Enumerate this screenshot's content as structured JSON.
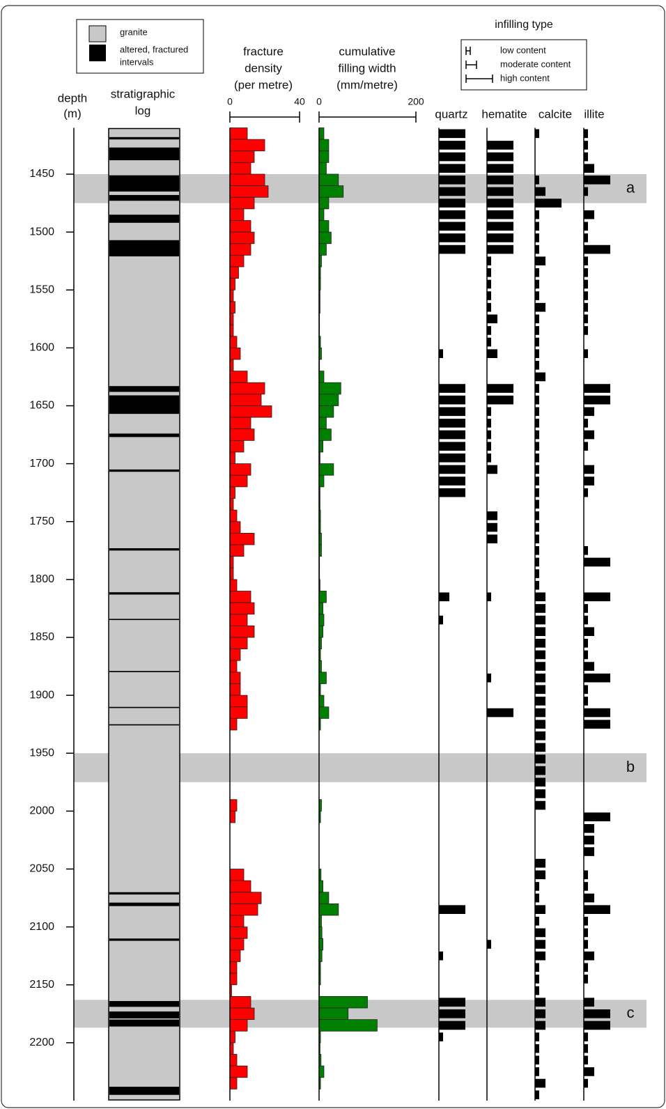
{
  "chart_data": {
    "type": "well-log",
    "depth_label": [
      "depth",
      "(m)"
    ],
    "strat_label": [
      "stratigraphic",
      "log"
    ],
    "density_label": [
      "fracture",
      "density",
      "(per metre)"
    ],
    "width_label": [
      "cumulative",
      "filling width",
      "(mm/metre)"
    ],
    "infilling_title": "infilling type",
    "legend": {
      "granite": "granite",
      "altered": [
        "altered, fractured",
        "intervals"
      ]
    },
    "infilling_levels": [
      {
        "value": 1,
        "label": "low content"
      },
      {
        "value": 2,
        "label": "moderate content"
      },
      {
        "value": 3,
        "label": "high content"
      }
    ],
    "ylim": [
      1410,
      2250
    ],
    "yticks": [
      1450,
      1500,
      1550,
      1600,
      1650,
      1700,
      1750,
      1800,
      1850,
      1900,
      1950,
      2000,
      2050,
      2100,
      2150,
      2200
    ],
    "zones": [
      {
        "label": "a",
        "range": [
          1450,
          1475
        ]
      },
      {
        "label": "b",
        "range": [
          1950,
          1975
        ]
      },
      {
        "label": "c",
        "range": [
          2163,
          2187
        ]
      }
    ],
    "altered_intervals": [
      [
        1418,
        1420
      ],
      [
        1427,
        1438
      ],
      [
        1451,
        1465
      ],
      [
        1468,
        1473
      ],
      [
        1485,
        1492
      ],
      [
        1507,
        1521
      ],
      [
        1633,
        1638
      ],
      [
        1641,
        1657
      ],
      [
        1674,
        1677
      ],
      [
        1705,
        1707
      ],
      [
        1773,
        1775
      ],
      [
        1811,
        1813
      ],
      [
        1834,
        1835
      ],
      [
        1879,
        1880
      ],
      [
        1910,
        1911
      ],
      [
        1925,
        1926
      ],
      [
        2070,
        2072
      ],
      [
        2079,
        2082
      ],
      [
        2110,
        2112
      ],
      [
        2164,
        2169
      ],
      [
        2173,
        2179
      ],
      [
        2180,
        2186
      ],
      [
        2238,
        2245
      ]
    ],
    "density_xlim": [
      0,
      40
    ],
    "density_xticks": [
      0,
      40
    ],
    "density_color": "#ff0000",
    "width_xlim": [
      0,
      200
    ],
    "width_xticks": [
      0,
      200
    ],
    "width_color": "#008000",
    "depths": [
      1410,
      1420,
      1430,
      1440,
      1450,
      1460,
      1470,
      1480,
      1490,
      1500,
      1510,
      1520,
      1530,
      1540,
      1550,
      1560,
      1570,
      1580,
      1590,
      1600,
      1610,
      1620,
      1630,
      1640,
      1650,
      1660,
      1670,
      1680,
      1690,
      1700,
      1710,
      1720,
      1730,
      1740,
      1750,
      1760,
      1770,
      1780,
      1790,
      1800,
      1810,
      1820,
      1830,
      1840,
      1850,
      1860,
      1870,
      1880,
      1890,
      1900,
      1910,
      1920,
      1930,
      1940,
      1950,
      1960,
      1970,
      1980,
      1990,
      2000,
      2010,
      2020,
      2030,
      2040,
      2050,
      2060,
      2070,
      2080,
      2090,
      2100,
      2110,
      2120,
      2130,
      2140,
      2150,
      2160,
      2170,
      2180,
      2190,
      2200,
      2210,
      2220,
      2230,
      2240
    ],
    "fracture_density": [
      10,
      20,
      14,
      12,
      20,
      22,
      14,
      8,
      12,
      14,
      12,
      8,
      5,
      3,
      2,
      3,
      2,
      2,
      4,
      6,
      2,
      10,
      20,
      18,
      24,
      12,
      14,
      8,
      3,
      12,
      10,
      3,
      2,
      4,
      6,
      14,
      8,
      2,
      2,
      4,
      12,
      14,
      10,
      14,
      10,
      6,
      4,
      6,
      6,
      10,
      10,
      4,
      0,
      0,
      0,
      0,
      0,
      0,
      4,
      3,
      0,
      0,
      0,
      0,
      8,
      12,
      18,
      16,
      8,
      10,
      8,
      6,
      4,
      4,
      1,
      12,
      14,
      10,
      3,
      2,
      4,
      10,
      4,
      0
    ],
    "filling_width": [
      10,
      20,
      20,
      15,
      40,
      50,
      20,
      10,
      20,
      25,
      15,
      5,
      3,
      3,
      2,
      2,
      1,
      1,
      3,
      5,
      1,
      10,
      45,
      40,
      30,
      15,
      25,
      8,
      2,
      30,
      10,
      2,
      2,
      3,
      3,
      5,
      5,
      1,
      1,
      2,
      15,
      8,
      10,
      8,
      5,
      3,
      5,
      15,
      3,
      10,
      20,
      3,
      0,
      0,
      0,
      0,
      0,
      0,
      5,
      3,
      0,
      0,
      0,
      0,
      4,
      8,
      20,
      40,
      5,
      6,
      8,
      6,
      3,
      3,
      1,
      100,
      60,
      120,
      3,
      2,
      4,
      10,
      3,
      0
    ],
    "infilling": [
      {
        "name": "quartz",
        "values": [
          3,
          3,
          3,
          3,
          3,
          3,
          3,
          3,
          3,
          3,
          3,
          0,
          0,
          0,
          0,
          0,
          0,
          0,
          0,
          1,
          0,
          0,
          3,
          3,
          3,
          3,
          3,
          3,
          3,
          3,
          3,
          3,
          0,
          0,
          0,
          0,
          0,
          0,
          0,
          0,
          2,
          0,
          1,
          0,
          0,
          0,
          0,
          0,
          0,
          0,
          0,
          0,
          0,
          0,
          0,
          0,
          0,
          0,
          0,
          0,
          0,
          0,
          0,
          0,
          0,
          0,
          0,
          3,
          0,
          0,
          0,
          1,
          0,
          0,
          0,
          3,
          3,
          3,
          1,
          0,
          0,
          0,
          0,
          0
        ]
      },
      {
        "name": "hematite",
        "values": [
          0,
          3,
          3,
          3,
          3,
          3,
          3,
          3,
          3,
          3,
          3,
          1,
          1,
          1,
          1,
          1,
          2,
          1,
          1,
          2,
          0,
          0,
          3,
          3,
          1,
          1,
          1,
          1,
          1,
          2,
          0,
          0,
          0,
          2,
          2,
          2,
          0,
          0,
          0,
          0,
          1,
          0,
          0,
          0,
          0,
          0,
          0,
          1,
          0,
          0,
          3,
          0,
          0,
          0,
          0,
          0,
          0,
          0,
          0,
          0,
          0,
          0,
          0,
          0,
          0,
          0,
          0,
          0,
          0,
          0,
          1,
          0,
          0,
          0,
          0,
          0,
          0,
          0,
          0,
          0,
          0,
          0,
          0,
          0
        ]
      },
      {
        "name": "calcite",
        "values": [
          1,
          0,
          0,
          0,
          1,
          2,
          3,
          1,
          1,
          1,
          1,
          2,
          1,
          1,
          1,
          2,
          1,
          1,
          1,
          1,
          1,
          2,
          1,
          1,
          1,
          1,
          1,
          1,
          1,
          1,
          1,
          1,
          1,
          1,
          1,
          1,
          1,
          1,
          1,
          1,
          2,
          2,
          2,
          2,
          2,
          2,
          2,
          2,
          2,
          2,
          2,
          2,
          2,
          2,
          2,
          2,
          2,
          2,
          2,
          0,
          0,
          0,
          0,
          2,
          2,
          1,
          1,
          2,
          1,
          2,
          2,
          2,
          1,
          1,
          1,
          2,
          2,
          2,
          1,
          1,
          1,
          1,
          2,
          1
        ]
      },
      {
        "name": "illite",
        "values": [
          1,
          1,
          1,
          2,
          3,
          1,
          0,
          2,
          1,
          1,
          3,
          1,
          1,
          1,
          1,
          1,
          1,
          1,
          0,
          1,
          0,
          0,
          3,
          3,
          2,
          1,
          2,
          1,
          0,
          2,
          2,
          1,
          0,
          0,
          0,
          0,
          1,
          3,
          0,
          0,
          3,
          1,
          1,
          2,
          1,
          1,
          2,
          3,
          1,
          1,
          3,
          3,
          0,
          0,
          0,
          0,
          0,
          0,
          0,
          3,
          2,
          2,
          2,
          0,
          1,
          1,
          2,
          3,
          1,
          1,
          1,
          2,
          1,
          1,
          0,
          2,
          3,
          3,
          1,
          1,
          1,
          2,
          1,
          0
        ]
      }
    ]
  }
}
